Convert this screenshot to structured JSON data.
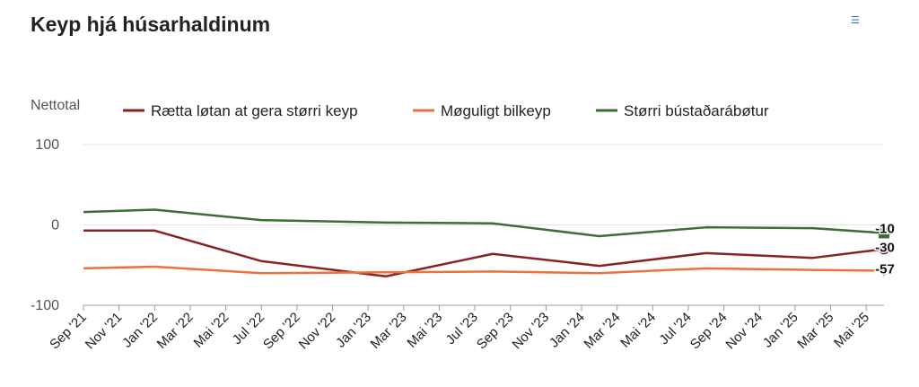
{
  "header": {
    "menu_icon": "hamburger-menu-icon"
  },
  "chart_data": {
    "type": "line",
    "title": "Keyp hjá húsarhaldinum",
    "ylabel": "Nettotal",
    "ylim": [
      -100,
      100
    ],
    "yticks": [
      -100,
      0,
      100
    ],
    "grid": true,
    "legend": "top",
    "x": [
      "Sep '21",
      "Nov '21",
      "Jan '22",
      "Mar '22",
      "Mai '22",
      "Jul '22",
      "Sep '22",
      "Nov '22",
      "Jan '23",
      "Mar '23",
      "Mai '23",
      "Jul '23",
      "Sep '23",
      "Nov '23",
      "Jan '24",
      "Mar '24",
      "Mai '24",
      "Jul '24",
      "Sep '24",
      "Nov '24",
      "Jan '25",
      "Mar '25",
      "Mai '25"
    ],
    "series": [
      {
        "name": "Rætta løtan at gera størri keyp",
        "color": "#8b2222",
        "points": [
          [
            "Sep '21",
            -7
          ],
          [
            "Jan '22",
            -7
          ],
          [
            "Jul '22",
            -45
          ],
          [
            "Feb '23",
            -64
          ],
          [
            "Aug '23",
            -36
          ],
          [
            "Feb '24",
            -51
          ],
          [
            "Aug '24",
            -35
          ],
          [
            "Feb '25",
            -41
          ],
          [
            "Jun '25",
            -30
          ]
        ],
        "end_label": "-30",
        "end_marker": "circle"
      },
      {
        "name": "Møguligt bilkeyp",
        "color": "#e8743b",
        "points": [
          [
            "Sep '21",
            -54
          ],
          [
            "Jan '22",
            -52
          ],
          [
            "Jul '22",
            -60
          ],
          [
            "Feb '23",
            -59
          ],
          [
            "Aug '23",
            -58
          ],
          [
            "Feb '24",
            -60
          ],
          [
            "Aug '24",
            -54
          ],
          [
            "Feb '25",
            -56
          ],
          [
            "Jun '25",
            -57
          ]
        ],
        "end_label": "-57",
        "end_marker": "diamond"
      },
      {
        "name": "Størri bústaðarábøtur",
        "color": "#3c6e35",
        "points": [
          [
            "Sep '21",
            16
          ],
          [
            "Jan '22",
            19
          ],
          [
            "Jul '22",
            6
          ],
          [
            "Feb '23",
            3
          ],
          [
            "Aug '23",
            2
          ],
          [
            "Feb '24",
            -14
          ],
          [
            "Aug '24",
            -3
          ],
          [
            "Feb '25",
            -4
          ],
          [
            "Jun '25",
            -10
          ]
        ],
        "end_label": "-10",
        "end_marker": "square"
      }
    ]
  }
}
